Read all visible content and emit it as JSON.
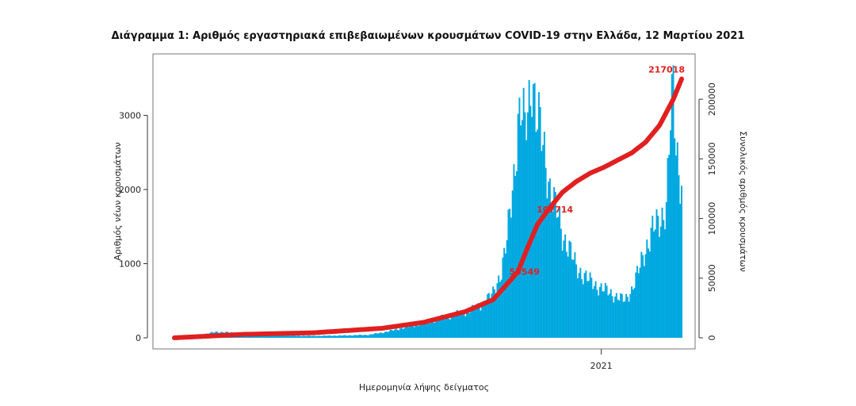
{
  "chart_data": {
    "type": "bar",
    "title": "Διάγραμμα 1: Αριθμός εργαστηριακά επιβεβαιωμένων κρουσμάτων COVID-19 στην Ελλάδα, 12 Μαρτίου 2021",
    "xlabel": "Ημερομηνία λήψης δείγματος",
    "ylabel": "Αριθμός νέων κρουσμάτων",
    "y2label": "Συνολικός αριθμός κρουσμάτων",
    "ylim": [
      0,
      3700
    ],
    "y2lim": [
      0,
      230000
    ],
    "yticks": [
      0,
      1000,
      2000,
      3000
    ],
    "y2ticks": [
      0,
      50000,
      100000,
      150000,
      200000
    ],
    "x_tick_label": "2021",
    "x_tick_index": 308,
    "n_days": 367,
    "bar_color": "#00a8e0",
    "line_color": "#e02020",
    "bar_keypoints": [
      [
        0,
        2
      ],
      [
        10,
        20
      ],
      [
        20,
        40
      ],
      [
        30,
        80
      ],
      [
        40,
        70
      ],
      [
        50,
        55
      ],
      [
        60,
        40
      ],
      [
        80,
        30
      ],
      [
        100,
        25
      ],
      [
        120,
        30
      ],
      [
        140,
        40
      ],
      [
        150,
        70
      ],
      [
        160,
        110
      ],
      [
        170,
        160
      ],
      [
        180,
        200
      ],
      [
        190,
        250
      ],
      [
        200,
        300
      ],
      [
        210,
        350
      ],
      [
        220,
        420
      ],
      [
        230,
        600
      ],
      [
        236,
        900
      ],
      [
        240,
        1300
      ],
      [
        245,
        2200
      ],
      [
        248,
        2900
      ],
      [
        250,
        3050
      ],
      [
        253,
        2800
      ],
      [
        256,
        3200
      ],
      [
        258,
        3600
      ],
      [
        261,
        3000
      ],
      [
        264,
        2800
      ],
      [
        268,
        2400
      ],
      [
        272,
        1900
      ],
      [
        276,
        1700
      ],
      [
        280,
        1400
      ],
      [
        285,
        1200
      ],
      [
        290,
        950
      ],
      [
        295,
        850
      ],
      [
        300,
        760
      ],
      [
        305,
        700
      ],
      [
        310,
        650
      ],
      [
        315,
        600
      ],
      [
        320,
        550
      ],
      [
        325,
        500
      ],
      [
        330,
        650
      ],
      [
        335,
        900
      ],
      [
        340,
        1200
      ],
      [
        345,
        1450
      ],
      [
        350,
        1550
      ],
      [
        355,
        1800
      ],
      [
        358,
        2900
      ],
      [
        360,
        3300
      ],
      [
        362,
        2600
      ],
      [
        364,
        2300
      ],
      [
        366,
        2100
      ]
    ],
    "cumulative_keypoints": [
      [
        0,
        0
      ],
      [
        50,
        2900
      ],
      [
        100,
        4200
      ],
      [
        150,
        8000
      ],
      [
        180,
        13000
      ],
      [
        210,
        22000
      ],
      [
        230,
        32000
      ],
      [
        240,
        45000
      ],
      [
        248,
        55549
      ],
      [
        255,
        76000
      ],
      [
        262,
        95000
      ],
      [
        270,
        107714
      ],
      [
        280,
        122000
      ],
      [
        290,
        131000
      ],
      [
        300,
        138000
      ],
      [
        310,
        143000
      ],
      [
        320,
        149000
      ],
      [
        330,
        155000
      ],
      [
        340,
        164000
      ],
      [
        350,
        178000
      ],
      [
        360,
        200000
      ],
      [
        366,
        217018
      ]
    ],
    "annotations": [
      {
        "label": "55549",
        "index": 248,
        "value": 55549
      },
      {
        "label": "107714",
        "index": 270,
        "value": 107714
      },
      {
        "label": "217018",
        "index": 366,
        "value": 217018
      }
    ]
  }
}
